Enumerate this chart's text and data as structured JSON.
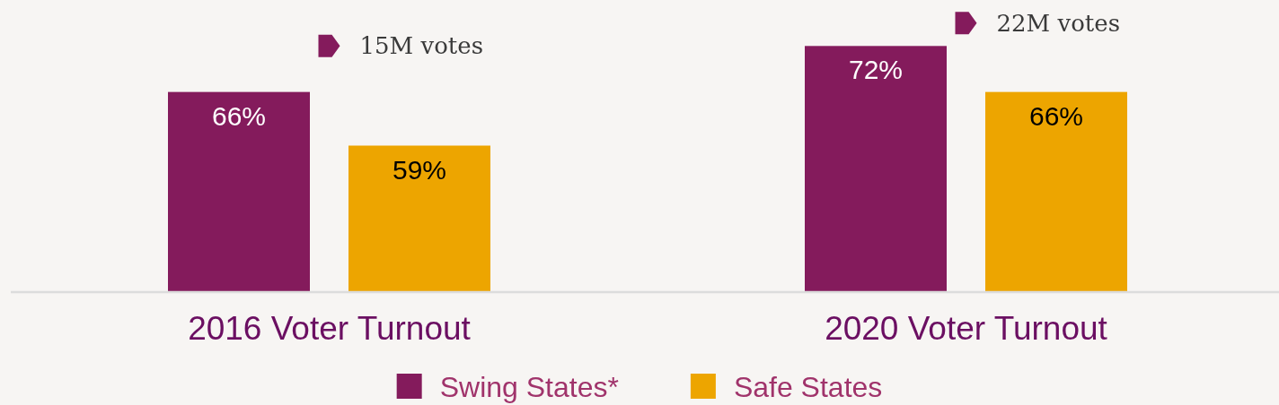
{
  "chart_data": {
    "type": "bar",
    "categories": [
      "2016 Voter Turnout",
      "2020 Voter Turnout"
    ],
    "series": [
      {
        "name": "Swing States*",
        "color": "#841b5c",
        "values": [
          66,
          72
        ],
        "value_labels": [
          "66%",
          "72%"
        ]
      },
      {
        "name": "Safe States",
        "color": "#eda500",
        "values": [
          59,
          66
        ],
        "value_labels": [
          "59%",
          "66%"
        ]
      }
    ],
    "ylim": [
      40,
      78
    ],
    "tick_labels": "x",
    "legend": "bottom",
    "annotations": [
      {
        "text": "15M votes",
        "x": "2016 Voter Turnout",
        "y": 72
      },
      {
        "text": "22M votes",
        "x": "2020 Voter Turnout",
        "y": 75
      }
    ]
  }
}
